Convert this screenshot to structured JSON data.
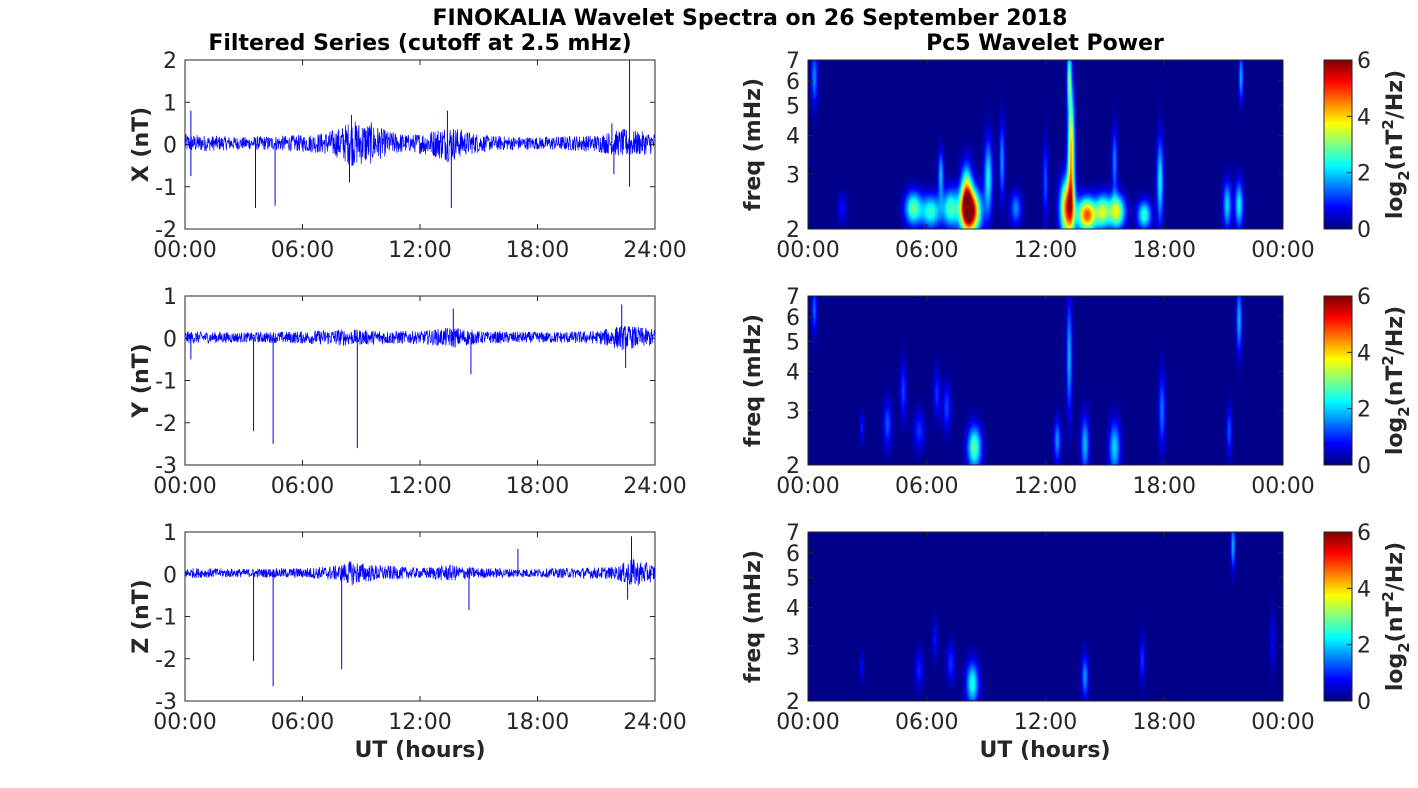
{
  "figure": {
    "title": "FINOKALIA Wavelet Spectra on 26 September 2018",
    "left_title": "Filtered Series (cutoff at 2.5 mHz)",
    "right_title": "Pc5 Wavelet Power",
    "xlabel": "UT (hours)"
  },
  "chart_data": [
    {
      "type": "line",
      "name": "x-series-panel",
      "ylabel": "X (nT)",
      "xlim": [
        0,
        24
      ],
      "ylim": [
        -2,
        2
      ],
      "xticks": [
        "00:00",
        "06:00",
        "12:00",
        "18:00",
        "24:00"
      ],
      "yticks": [
        "2",
        "1",
        "0",
        "-1",
        "-2"
      ],
      "color": "#0000ff",
      "baseline": 0.03,
      "envelope": [
        [
          0,
          0.22
        ],
        [
          1.5,
          0.18
        ],
        [
          3,
          0.15
        ],
        [
          6,
          0.2
        ],
        [
          7,
          0.25
        ],
        [
          7.8,
          0.35
        ],
        [
          8.5,
          0.55
        ],
        [
          9.5,
          0.5
        ],
        [
          10.3,
          0.3
        ],
        [
          11.5,
          0.2
        ],
        [
          12.5,
          0.3
        ],
        [
          13.5,
          0.45
        ],
        [
          14.3,
          0.3
        ],
        [
          15.5,
          0.18
        ],
        [
          18,
          0.15
        ],
        [
          21,
          0.2
        ],
        [
          22.5,
          0.35
        ],
        [
          23,
          0.3
        ],
        [
          24,
          0.25
        ]
      ],
      "spikes": [
        [
          0.3,
          0.8
        ],
        [
          0.3,
          -0.75
        ],
        [
          3.6,
          -1.5
        ],
        [
          4.6,
          -1.45
        ],
        [
          8.5,
          0.7
        ],
        [
          8.4,
          -0.9
        ],
        [
          13.6,
          -1.5
        ],
        [
          13.4,
          0.8
        ],
        [
          22.7,
          2.0
        ],
        [
          22.7,
          -1.0
        ],
        [
          21.8,
          0.5
        ],
        [
          21.9,
          -0.7
        ]
      ]
    },
    {
      "type": "line",
      "name": "y-series-panel",
      "ylabel": "Y (nT)",
      "xlim": [
        0,
        24
      ],
      "ylim": [
        -3,
        1
      ],
      "xticks": [
        "00:00",
        "06:00",
        "12:00",
        "18:00",
        "24:00"
      ],
      "yticks": [
        "1",
        "0",
        "-1",
        "-2",
        "-3"
      ],
      "color": "#0000ff",
      "baseline": 0.02,
      "envelope": [
        [
          0,
          0.15
        ],
        [
          3,
          0.12
        ],
        [
          6,
          0.15
        ],
        [
          8,
          0.2
        ],
        [
          9,
          0.18
        ],
        [
          12,
          0.15
        ],
        [
          13.7,
          0.25
        ],
        [
          15,
          0.15
        ],
        [
          18,
          0.13
        ],
        [
          21,
          0.15
        ],
        [
          22.3,
          0.3
        ],
        [
          24,
          0.2
        ]
      ],
      "spikes": [
        [
          0.3,
          -0.5
        ],
        [
          3.5,
          -2.2
        ],
        [
          4.5,
          -2.5
        ],
        [
          8.8,
          -2.6
        ],
        [
          14.6,
          -0.85
        ],
        [
          22.5,
          -0.7
        ],
        [
          22.3,
          0.8
        ],
        [
          13.7,
          0.7
        ]
      ]
    },
    {
      "type": "line",
      "name": "z-series-panel",
      "ylabel": "Z (nT)",
      "xlim": [
        0,
        24
      ],
      "ylim": [
        -3,
        1
      ],
      "xticks": [
        "00:00",
        "06:00",
        "12:00",
        "18:00",
        "24:00"
      ],
      "yticks": [
        "1",
        "0",
        "-1",
        "-2",
        "-3"
      ],
      "color": "#0000ff",
      "baseline": 0.03,
      "envelope": [
        [
          0,
          0.12
        ],
        [
          3,
          0.1
        ],
        [
          6,
          0.12
        ],
        [
          7.8,
          0.18
        ],
        [
          8.5,
          0.3
        ],
        [
          9.5,
          0.2
        ],
        [
          12,
          0.12
        ],
        [
          13.5,
          0.2
        ],
        [
          15,
          0.12
        ],
        [
          18,
          0.1
        ],
        [
          22,
          0.15
        ],
        [
          22.8,
          0.35
        ],
        [
          24,
          0.2
        ]
      ],
      "spikes": [
        [
          3.5,
          -2.05
        ],
        [
          4.5,
          -2.65
        ],
        [
          8.0,
          -2.25
        ],
        [
          14.5,
          -0.85
        ],
        [
          17,
          0.6
        ],
        [
          22.8,
          0.9
        ],
        [
          22.6,
          -0.6
        ]
      ]
    },
    {
      "type": "heatmap",
      "name": "x-wavelet-panel",
      "ylabel": "freq (mHz)",
      "xlim": [
        0,
        24
      ],
      "ylim": [
        2,
        7
      ],
      "clim": [
        0,
        6
      ],
      "xticks": [
        "00:00",
        "06:00",
        "12:00",
        "18:00",
        "00:00"
      ],
      "yticks": [
        "2",
        "3",
        "4",
        "5",
        "6",
        "7"
      ],
      "colorbar": {
        "label": "log",
        "label_sub": "2",
        "label_rest": "(nT",
        "label_sup": "2",
        "label_end": "/Hz)",
        "ticks": [
          "6",
          "4",
          "2",
          "0"
        ]
      },
      "blobs": [
        [
          0.3,
          6.5,
          0.12,
          0.6,
          1.5
        ],
        [
          1.7,
          2.6,
          0.15,
          0.3,
          0.8
        ],
        [
          5.3,
          2.6,
          0.3,
          0.35,
          2.8
        ],
        [
          6.2,
          2.5,
          0.35,
          0.35,
          2.5
        ],
        [
          7.2,
          2.6,
          0.3,
          0.4,
          2.6
        ],
        [
          6.7,
          3.6,
          0.1,
          0.5,
          1.8
        ],
        [
          8.2,
          2.5,
          0.35,
          0.45,
          6.0
        ],
        [
          8.0,
          3.0,
          0.2,
          0.6,
          3.5
        ],
        [
          9.1,
          3.5,
          0.15,
          0.8,
          2.2
        ],
        [
          9.8,
          4.0,
          0.1,
          0.8,
          1.6
        ],
        [
          10.5,
          2.6,
          0.2,
          0.35,
          1.5
        ],
        [
          12.0,
          3.4,
          0.1,
          0.8,
          1.2
        ],
        [
          13.1,
          2.6,
          0.25,
          0.6,
          4.8
        ],
        [
          13.3,
          4.2,
          0.12,
          1.3,
          4.2
        ],
        [
          13.2,
          6.5,
          0.08,
          0.6,
          2.5
        ],
        [
          14.1,
          2.4,
          0.35,
          0.35,
          4.8
        ],
        [
          14.9,
          2.5,
          0.25,
          0.35,
          3.0
        ],
        [
          15.6,
          2.5,
          0.3,
          0.35,
          3.6
        ],
        [
          15.5,
          4.0,
          0.1,
          0.7,
          1.5
        ],
        [
          17.0,
          2.4,
          0.25,
          0.3,
          2.5
        ],
        [
          17.8,
          3.4,
          0.12,
          0.9,
          2.2
        ],
        [
          21.2,
          2.7,
          0.15,
          0.5,
          2.0
        ],
        [
          21.8,
          2.7,
          0.15,
          0.5,
          2.2
        ],
        [
          21.9,
          6.5,
          0.08,
          0.5,
          1.8
        ]
      ]
    },
    {
      "type": "heatmap",
      "name": "y-wavelet-panel",
      "ylabel": "freq (mHz)",
      "xlim": [
        0,
        24
      ],
      "ylim": [
        2,
        7
      ],
      "clim": [
        0,
        6
      ],
      "xticks": [
        "00:00",
        "06:00",
        "12:00",
        "18:00",
        "00:00"
      ],
      "yticks": [
        "2",
        "3",
        "4",
        "5",
        "6",
        "7"
      ],
      "colorbar": {
        "label": "log",
        "label_sub": "2",
        "label_rest": "(nT",
        "label_sup": "2",
        "label_end": "/Hz)",
        "ticks": [
          "6",
          "4",
          "2",
          "0"
        ]
      },
      "blobs": [
        [
          0.3,
          6.6,
          0.1,
          0.5,
          1.3
        ],
        [
          2.7,
          3.1,
          0.08,
          0.3,
          0.9
        ],
        [
          4.0,
          3.2,
          0.15,
          0.5,
          1.2
        ],
        [
          4.8,
          4.2,
          0.12,
          0.6,
          1.1
        ],
        [
          5.6,
          3.0,
          0.2,
          0.4,
          1.0
        ],
        [
          6.5,
          4.1,
          0.12,
          0.5,
          1.0
        ],
        [
          7.0,
          3.7,
          0.15,
          0.5,
          1.1
        ],
        [
          8.4,
          2.5,
          0.25,
          0.45,
          2.8
        ],
        [
          12.6,
          2.7,
          0.12,
          0.45,
          1.6
        ],
        [
          13.2,
          5.2,
          0.1,
          1.2,
          1.8
        ],
        [
          14.0,
          2.6,
          0.15,
          0.6,
          1.8
        ],
        [
          15.5,
          2.5,
          0.2,
          0.55,
          2.0
        ],
        [
          17.9,
          3.6,
          0.12,
          0.8,
          1.4
        ],
        [
          21.3,
          3.0,
          0.1,
          0.5,
          1.2
        ],
        [
          21.8,
          6.3,
          0.1,
          0.7,
          1.8
        ]
      ]
    },
    {
      "type": "heatmap",
      "name": "z-wavelet-panel",
      "ylabel": "freq (mHz)",
      "xlim": [
        0,
        24
      ],
      "ylim": [
        2,
        7
      ],
      "clim": [
        0,
        6
      ],
      "xticks": [
        "00:00",
        "06:00",
        "12:00",
        "18:00",
        "00:00"
      ],
      "yticks": [
        "2",
        "3",
        "4",
        "5",
        "6",
        "7"
      ],
      "colorbar": {
        "label": "log",
        "label_sub": "2",
        "label_rest": "(nT",
        "label_sup": "2",
        "label_end": "/Hz)",
        "ticks": [
          "6",
          "4",
          "2",
          "0"
        ]
      },
      "blobs": [
        [
          2.7,
          3.0,
          0.08,
          0.3,
          0.7
        ],
        [
          5.6,
          2.9,
          0.15,
          0.4,
          0.9
        ],
        [
          6.4,
          3.8,
          0.1,
          0.4,
          0.8
        ],
        [
          7.2,
          3.1,
          0.15,
          0.4,
          1.0
        ],
        [
          8.3,
          2.5,
          0.22,
          0.45,
          2.4
        ],
        [
          14.0,
          2.7,
          0.12,
          0.45,
          1.6
        ],
        [
          16.9,
          3.2,
          0.1,
          0.5,
          1.0
        ],
        [
          21.5,
          6.6,
          0.08,
          0.5,
          1.8
        ],
        [
          23.5,
          3.8,
          0.1,
          0.6,
          0.7
        ]
      ]
    }
  ]
}
